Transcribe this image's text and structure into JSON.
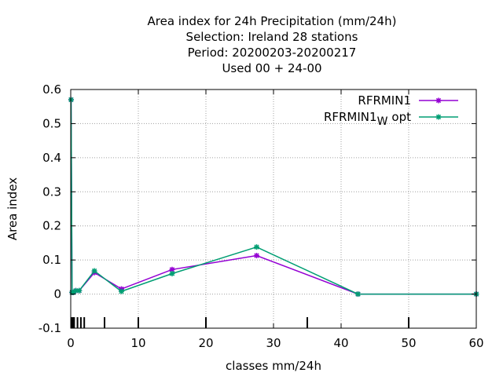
{
  "chart_data": {
    "type": "line",
    "title_lines": [
      "Area index  for 24h Precipitation (mm/24h)",
      "Selection: Ireland      28 stations",
      "Period: 20200203-20200217",
      "Used  00 + 24-00"
    ],
    "xlabel": "classes mm/24h",
    "ylabel": "Area index",
    "xlim": [
      0,
      60
    ],
    "ylim": [
      -0.1,
      0.6
    ],
    "x_ticks": [
      0,
      10,
      20,
      30,
      40,
      50,
      60
    ],
    "x_tick_labels": [
      "0",
      "10",
      "20",
      "30",
      "40",
      "50",
      "60"
    ],
    "y_ticks": [
      -0.1,
      0,
      0.1,
      0.2,
      0.3,
      0.4,
      0.5,
      0.6
    ],
    "y_tick_labels": [
      "-0.1",
      "0",
      "0.1",
      "0.2",
      "0.3",
      "0.4",
      "0.5",
      "0.6"
    ],
    "grid": true,
    "legend_position": "top-right",
    "class_markers": [
      0.1,
      0.3,
      0.5,
      1,
      1.5,
      2,
      5,
      10,
      20,
      35,
      50
    ],
    "series": [
      {
        "name": "RFRMIN1",
        "legend_main": "RFRMIN1",
        "legend_sub": "",
        "legend_suffix": "",
        "color": "#9400d3",
        "x": [
          0.05,
          0.2,
          0.4,
          0.75,
          1.25,
          3.5,
          7.5,
          15,
          27.5,
          42.5,
          60
        ],
        "y": [
          0.57,
          0.005,
          0.005,
          0.01,
          0.01,
          0.063,
          0.015,
          0.072,
          0.113,
          0.0,
          0.0
        ]
      },
      {
        "name": "RFRMIN1 W opt",
        "legend_main": "RFRMIN1",
        "legend_sub": "W",
        "legend_suffix": "opt",
        "color": "#009e73",
        "x": [
          0.05,
          0.2,
          0.4,
          0.75,
          1.25,
          3.5,
          7.5,
          15,
          27.5,
          42.5,
          60
        ],
        "y": [
          0.57,
          0.005,
          0.005,
          0.01,
          0.01,
          0.068,
          0.008,
          0.06,
          0.138,
          0.0,
          0.0
        ]
      }
    ]
  }
}
